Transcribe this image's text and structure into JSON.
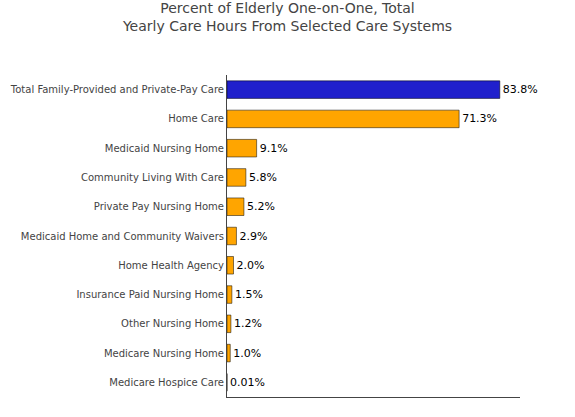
{
  "chart_data": {
    "type": "bar",
    "orientation": "horizontal",
    "title": "Percent of Elderly One-on-One, Total\nYearly Care Hours From Selected Care Systems",
    "categories": [
      "Medicare Hospice Care",
      "Medicare Nursing Home",
      "Other Nursing Home",
      "Insurance Paid Nursing Home",
      "Home Health Agency",
      "Medicaid Home and Community Waivers",
      "Private Pay Nursing Home",
      "Community Living With Care",
      "Medicaid Nursing Home",
      "Home Care",
      "Total Family-Provided and Private-Pay Care"
    ],
    "values": [
      0.01,
      1.0,
      1.2,
      1.5,
      2.0,
      2.9,
      5.2,
      5.8,
      9.1,
      71.3,
      83.8
    ],
    "value_labels": [
      "0.01%",
      "1.0%",
      "1.2%",
      "1.5%",
      "2.0%",
      "2.9%",
      "5.2%",
      "5.8%",
      "9.1%",
      "71.3%",
      "83.8%"
    ],
    "data_labels": true,
    "colors": [
      "#FFA500",
      "#FFA500",
      "#FFA500",
      "#FFA500",
      "#FFA500",
      "#FFA500",
      "#FFA500",
      "#FFA500",
      "#FFA500",
      "#FFA500",
      "#2020CC"
    ],
    "xlim": [
      0,
      90
    ],
    "xticks": [],
    "tick_labels": "y",
    "grid": false
  }
}
